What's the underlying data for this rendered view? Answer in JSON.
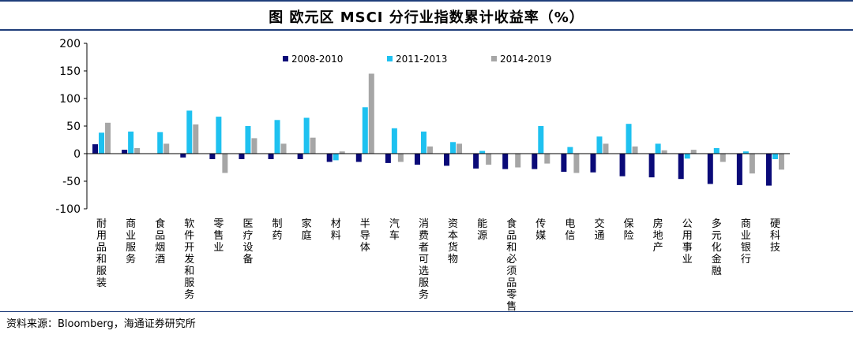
{
  "title": "图  欧元区 MSCI 分行业指数累计收益率（%）",
  "source": "资料来源：Bloomberg，海通证券研究所",
  "colors": {
    "s2008": "#0a0a78",
    "s2011": "#1ec1f0",
    "s2014": "#a6a6a6",
    "axis": "#000000"
  },
  "chart_data": {
    "type": "bar",
    "categories": [
      "耐用品和服装",
      "商业服务",
      "食品烟酒",
      "软件开发和服务",
      "零售业",
      "医疗设备",
      "制药",
      "家庭",
      "材料",
      "半导体",
      "汽车",
      "消费者可选服务",
      "资本货物",
      "能源",
      "食品和必须品零售",
      "传媒",
      "电信",
      "交通",
      "保险",
      "房地产",
      "公用事业",
      "多元化金融",
      "商业银行",
      "硬科技"
    ],
    "series": [
      {
        "name": "2008-2010",
        "values": [
          17,
          7,
          0,
          -7,
          -10,
          -10,
          -10,
          -10,
          -15,
          -15,
          -17,
          -20,
          -22,
          -27,
          -28,
          -28,
          -33,
          -34,
          -41,
          -43,
          -46,
          -55,
          -57,
          -58
        ]
      },
      {
        "name": "2011-2013",
        "values": [
          38,
          40,
          39,
          78,
          67,
          50,
          61,
          65,
          -12,
          84,
          46,
          40,
          21,
          5,
          0,
          50,
          12,
          31,
          54,
          18,
          -9,
          10,
          4,
          -10
        ]
      },
      {
        "name": "2014-2019",
        "values": [
          56,
          10,
          18,
          53,
          -35,
          28,
          18,
          29,
          4,
          145,
          -15,
          13,
          18,
          -20,
          -25,
          -18,
          -35,
          18,
          13,
          6,
          7,
          -15,
          -36,
          -29
        ]
      }
    ],
    "ylim": [
      -100,
      200
    ],
    "yticks": [
      -100,
      -50,
      0,
      50,
      100,
      150,
      200
    ],
    "grid": false,
    "legend": "top-center"
  }
}
